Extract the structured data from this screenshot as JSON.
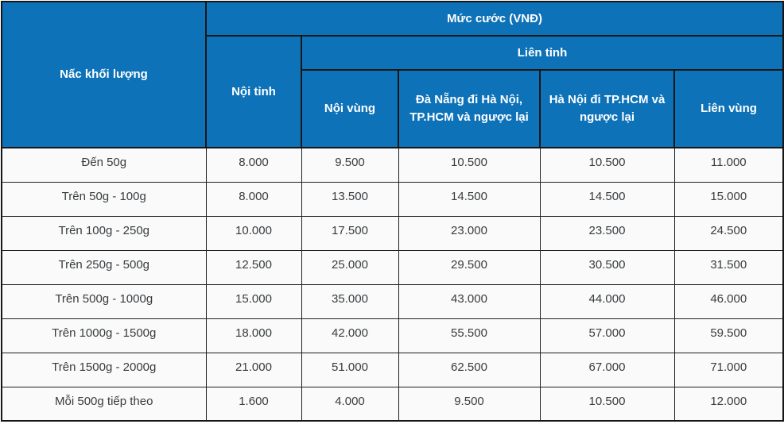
{
  "table": {
    "title": "Mức cước (VNĐ)",
    "header": {
      "weight_tier": "Nấc khối lượng",
      "fee_title": "Mức cước (VNĐ)",
      "intra_province": "Nội tỉnh",
      "inter_province": "Liên tỉnh",
      "sub_columns": [
        "Nội vùng",
        "Đà Nẵng đi Hà Nội, TP.HCM và ngược lại",
        "Hà Nội đi TP.HCM và ngược lại",
        "Liên vùng"
      ]
    },
    "rows": [
      {
        "label": "Đến 50g",
        "values": [
          "8.000",
          "9.500",
          "10.500",
          "10.500",
          "11.000"
        ]
      },
      {
        "label": "Trên 50g - 100g",
        "values": [
          "8.000",
          "13.500",
          "14.500",
          "14.500",
          "15.000"
        ]
      },
      {
        "label": "Trên 100g - 250g",
        "values": [
          "10.000",
          "17.500",
          "23.000",
          "23.500",
          "24.500"
        ]
      },
      {
        "label": "Trên 250g - 500g",
        "values": [
          "12.500",
          "25.000",
          "29.500",
          "30.500",
          "31.500"
        ]
      },
      {
        "label": "Trên 500g - 1000g",
        "values": [
          "15.000",
          "35.000",
          "43.000",
          "44.000",
          "46.000"
        ]
      },
      {
        "label": "Trên 1000g - 1500g",
        "values": [
          "18.000",
          "42.000",
          "55.500",
          "57.000",
          "59.500"
        ]
      },
      {
        "label": "Trên 1500g - 2000g",
        "values": [
          "21.000",
          "51.000",
          "62.500",
          "67.000",
          "71.000"
        ]
      },
      {
        "label": "Mỗi 500g tiếp theo",
        "values": [
          "1.600",
          "4.000",
          "9.500",
          "10.500",
          "12.000"
        ]
      }
    ],
    "colors": {
      "header_bg": "#0E72B9",
      "header_text": "#FFFFFF",
      "body_bg": "#FAFAFA",
      "body_text": "#383C3F",
      "border": "#161616"
    }
  }
}
